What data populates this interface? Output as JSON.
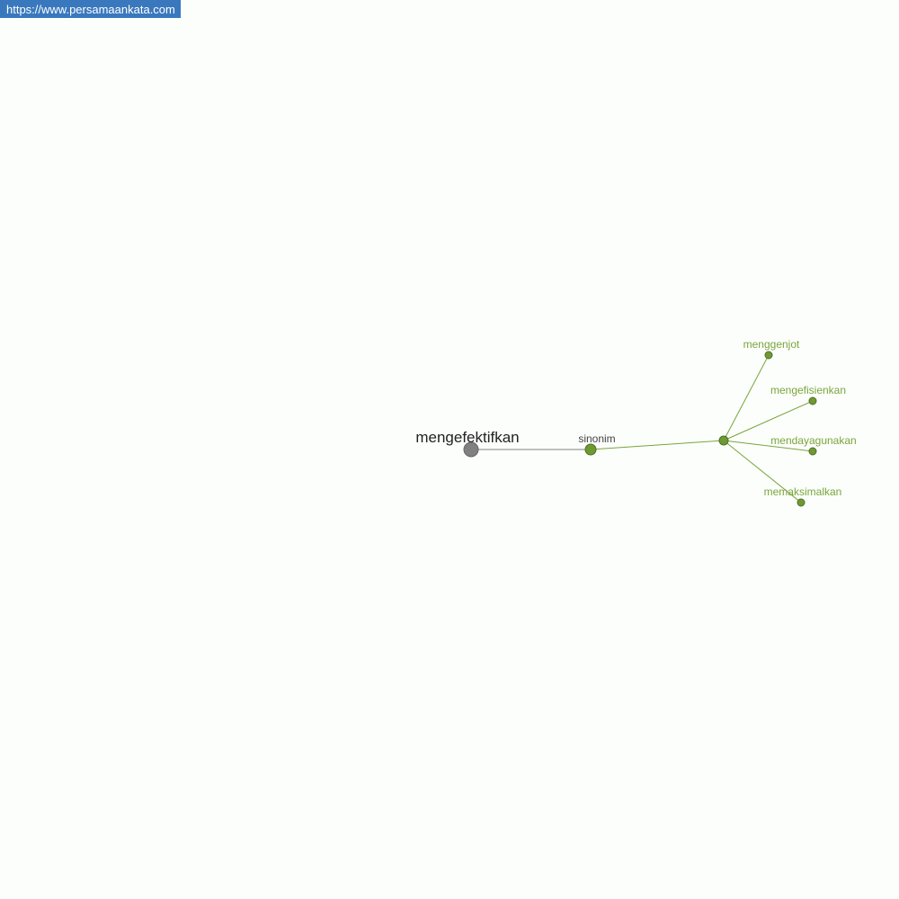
{
  "watermark": {
    "url": "https://www.persamaankata.com",
    "bg_color": "#3a78be"
  },
  "graph": {
    "root": {
      "label": "mengefektifkan",
      "color": "#808080"
    },
    "relation": {
      "label": "sinonim",
      "color": "#6e9a34"
    },
    "edge_color": "#7aa53a",
    "words": [
      {
        "label": "menggenjot"
      },
      {
        "label": "mengefisienkan"
      },
      {
        "label": "mendayagunakan"
      },
      {
        "label": "memaksimalkan"
      }
    ]
  }
}
